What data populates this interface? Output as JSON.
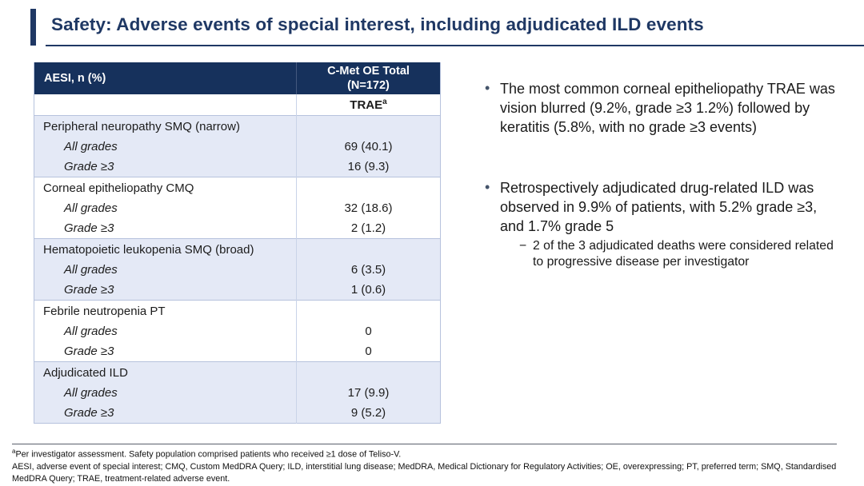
{
  "slide": {
    "title": "Safety: Adverse events of special interest, including adjudicated ILD events",
    "colors": {
      "title_navy": "#1f3864",
      "table_header_bg": "#16315c",
      "shaded_row_bg": "#e4e9f6",
      "table_border": "#b6c2dd",
      "body_text": "#1a1a1a"
    }
  },
  "table": {
    "header": {
      "col1": "AESI, n (%)",
      "col2_line1": "C-Met OE Total",
      "col2_line2": "(N=172)"
    },
    "subheader": {
      "col2": "TRAE",
      "col2_sup": "a"
    },
    "sections": [
      {
        "label": "Peripheral neuropathy SMQ (narrow)",
        "shaded": true,
        "rows": [
          {
            "label": "All grades",
            "value": "69 (40.1)"
          },
          {
            "label": "Grade ≥3",
            "value": "16 (9.3)"
          }
        ]
      },
      {
        "label": "Corneal epitheliopathy CMQ",
        "shaded": false,
        "rows": [
          {
            "label": "All grades",
            "value": "32 (18.6)"
          },
          {
            "label": "Grade ≥3",
            "value": "2 (1.2)"
          }
        ]
      },
      {
        "label": "Hematopoietic leukopenia SMQ (broad)",
        "shaded": true,
        "rows": [
          {
            "label": "All grades",
            "value": "6 (3.5)"
          },
          {
            "label": "Grade ≥3",
            "value": "1 (0.6)"
          }
        ]
      },
      {
        "label": "Febrile neutropenia PT",
        "shaded": false,
        "rows": [
          {
            "label": "All grades",
            "value": "0"
          },
          {
            "label": "Grade ≥3",
            "value": "0"
          }
        ]
      },
      {
        "label": "Adjudicated ILD",
        "shaded": true,
        "rows": [
          {
            "label": "All grades",
            "value": "17 (9.9)"
          },
          {
            "label": "Grade ≥3",
            "value": "9 (5.2)"
          }
        ]
      }
    ]
  },
  "bullets": [
    {
      "text": "The most common corneal epitheliopathy TRAE was vision blurred (9.2%, grade ≥3 1.2%) followed by keratitis (5.8%, with no grade ≥3 events)"
    },
    {
      "text": "Retrospectively adjudicated drug-related ILD was observed in 9.9% of patients, with 5.2% grade ≥3, and 1.7% grade 5",
      "sub": "2 of the 3 adjudicated deaths were considered related to progressive disease per investigator"
    }
  ],
  "footnotes": {
    "sup": "a",
    "line1": "Per investigator assessment. Safety population comprised patients who received ≥1 dose of Teliso-V.",
    "line2": "AESI, adverse event of special interest; CMQ, Custom MedDRA Query; ILD, interstitial lung disease; MedDRA, Medical Dictionary for Regulatory Activities; OE, overexpressing; PT, preferred term; SMQ, Standardised MedDRA Query; TRAE, treatment-related adverse event."
  }
}
